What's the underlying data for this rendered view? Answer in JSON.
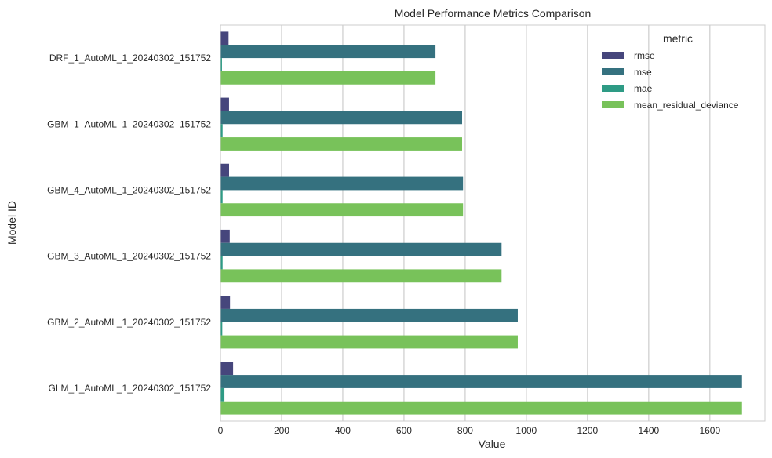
{
  "chart_data": {
    "type": "bar",
    "orientation": "horizontal",
    "title": "Model Performance Metrics Comparison",
    "xlabel": "Value",
    "ylabel": "Model ID",
    "xlim": [
      0,
      1780
    ],
    "xticks": [
      0,
      200,
      400,
      600,
      800,
      1000,
      1200,
      1400,
      1600
    ],
    "grid": true,
    "legend_title": "metric",
    "legend_position": "top-right",
    "categories": [
      "DRF_1_AutoML_1_20240302_151752",
      "GBM_1_AutoML_1_20240302_151752",
      "GBM_4_AutoML_1_20240302_151752",
      "GBM_3_AutoML_1_20240302_151752",
      "GBM_2_AutoML_1_20240302_151752",
      "GLM_1_AutoML_1_20240302_151752"
    ],
    "series": [
      {
        "name": "rmse",
        "color": "#46467c",
        "values": [
          26.5,
          28.1,
          28.2,
          30.3,
          31.2,
          41.3
        ]
      },
      {
        "name": "mse",
        "color": "#35717f",
        "values": [
          703,
          790,
          793,
          919,
          972,
          1705
        ]
      },
      {
        "name": "mae",
        "color": "#2e9b85",
        "values": [
          5,
          7,
          7,
          7,
          6,
          13
        ]
      },
      {
        "name": "mean_residual_deviance",
        "color": "#78c25a",
        "values": [
          703,
          790,
          793,
          919,
          972,
          1705
        ]
      }
    ]
  }
}
